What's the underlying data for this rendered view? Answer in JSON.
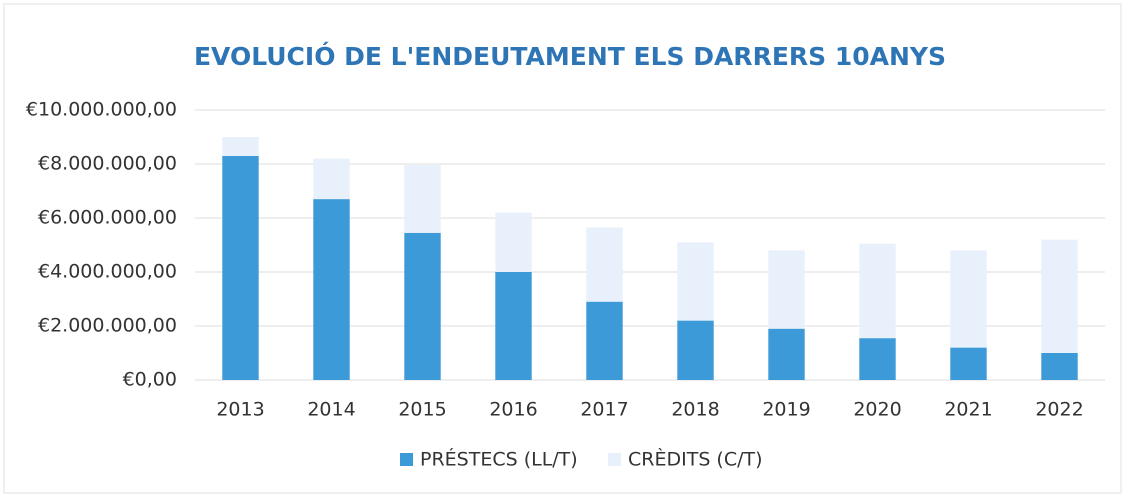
{
  "chart_data": {
    "type": "stacked_bar",
    "title": "EVOLUCIÓ DE L'ENDEUTAMENT ELS DARRERS 10ANYS",
    "categories": [
      "2013",
      "2014",
      "2015",
      "2016",
      "2017",
      "2018",
      "2019",
      "2020",
      "2021",
      "2022"
    ],
    "series": [
      {
        "name": "PRÉSTECS (LL/T)",
        "color": "#3d9ad8",
        "values": [
          8300000,
          6700000,
          5450000,
          4000000,
          2900000,
          2200000,
          1900000,
          1550000,
          1200000,
          1000000
        ]
      },
      {
        "name": "CRÈDITS (C/T)",
        "color": "#e8f1fb",
        "values": [
          700000,
          1500000,
          2510000,
          2200000,
          2750000,
          2900000,
          2900000,
          3500000,
          3600000,
          4200000
        ]
      }
    ],
    "ylim": [
      0,
      10000000
    ],
    "yticks": [
      {
        "value": 0,
        "label": "€0,00"
      },
      {
        "value": 2000000,
        "label": "€2.000.000,00"
      },
      {
        "value": 4000000,
        "label": "€4.000.000,00"
      },
      {
        "value": 6000000,
        "label": "€6.000.000,00"
      },
      {
        "value": 8000000,
        "label": "€8.000.000,00"
      },
      {
        "value": 10000000,
        "label": "€10.000.000,00"
      }
    ],
    "grid": true,
    "legend": "bottom"
  }
}
